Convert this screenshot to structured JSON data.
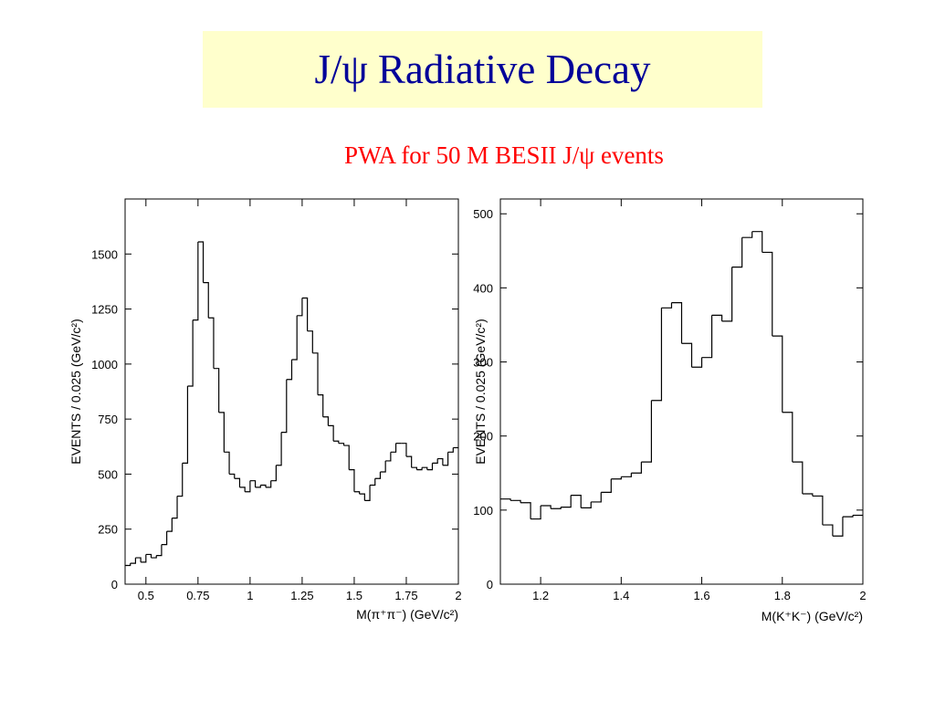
{
  "slide": {
    "title": "J/ψ Radiative Decay",
    "subtitle": "PWA for 50 M BESII J/ψ events"
  },
  "colors": {
    "title_bg": "#ffffcc",
    "title_text": "#000099",
    "subtitle_text": "#ff0000"
  },
  "chart_data": [
    {
      "type": "line",
      "style": "step-histogram",
      "ylabel": "EVENTS / 0.025 (GeV/c²)",
      "xlabel": "M(π⁺π⁻)  (GeV/c²)",
      "xlim": [
        0.4,
        2.0
      ],
      "ylim": [
        0,
        1750
      ],
      "xticks": [
        0.5,
        0.75,
        1,
        1.25,
        1.5,
        1.75,
        2
      ],
      "xtick_labels": [
        "0.5",
        "0.75",
        "1",
        "1.25",
        "1.5",
        "1.75",
        "2"
      ],
      "yticks": [
        0,
        250,
        500,
        750,
        1000,
        1250,
        1500
      ],
      "ytick_labels": [
        "0",
        "250",
        "500",
        "750",
        "1000",
        "1250",
        "1500"
      ],
      "bin_width": 0.025,
      "x": [
        0.4,
        0.425,
        0.45,
        0.475,
        0.5,
        0.525,
        0.55,
        0.575,
        0.6,
        0.625,
        0.65,
        0.675,
        0.7,
        0.725,
        0.75,
        0.775,
        0.8,
        0.825,
        0.85,
        0.875,
        0.9,
        0.925,
        0.95,
        0.975,
        1.0,
        1.025,
        1.05,
        1.075,
        1.1,
        1.125,
        1.15,
        1.175,
        1.2,
        1.225,
        1.25,
        1.275,
        1.3,
        1.325,
        1.35,
        1.375,
        1.4,
        1.425,
        1.45,
        1.475,
        1.5,
        1.525,
        1.55,
        1.575,
        1.6,
        1.625,
        1.65,
        1.675,
        1.7,
        1.725,
        1.75,
        1.775,
        1.8,
        1.825,
        1.85,
        1.875,
        1.9,
        1.925,
        1.95,
        1.975
      ],
      "values": [
        85,
        95,
        120,
        100,
        135,
        120,
        130,
        180,
        240,
        300,
        400,
        550,
        900,
        1200,
        1555,
        1370,
        1210,
        980,
        780,
        600,
        500,
        480,
        440,
        420,
        470,
        440,
        450,
        440,
        470,
        540,
        690,
        930,
        1020,
        1220,
        1300,
        1150,
        1050,
        860,
        760,
        720,
        650,
        640,
        630,
        520,
        420,
        410,
        380,
        450,
        480,
        510,
        560,
        600,
        640,
        640,
        580,
        530,
        520,
        530,
        520,
        550,
        570,
        540,
        600,
        620
      ]
    },
    {
      "type": "line",
      "style": "step-histogram",
      "ylabel": "EVENTS / 0.025 (GeV/c²)",
      "xlabel": "M(K⁺K⁻)  (GeV/c²)",
      "xlim": [
        1.1,
        2.0
      ],
      "ylim": [
        0,
        520
      ],
      "xticks": [
        1.2,
        1.4,
        1.6,
        1.8,
        2
      ],
      "xtick_labels": [
        "1.2",
        "1.4",
        "1.6",
        "1.8",
        "2"
      ],
      "yticks": [
        0,
        100,
        200,
        300,
        400,
        500
      ],
      "ytick_labels": [
        "0",
        "100",
        "200",
        "300",
        "400",
        "500"
      ],
      "bin_width": 0.025,
      "x": [
        1.1,
        1.125,
        1.15,
        1.175,
        1.2,
        1.225,
        1.25,
        1.275,
        1.3,
        1.325,
        1.35,
        1.375,
        1.4,
        1.425,
        1.45,
        1.475,
        1.5,
        1.525,
        1.55,
        1.575,
        1.6,
        1.625,
        1.65,
        1.675,
        1.7,
        1.725,
        1.75,
        1.775,
        1.8,
        1.825,
        1.85,
        1.875,
        1.9,
        1.925,
        1.95,
        1.975
      ],
      "values": [
        115,
        113,
        110,
        88,
        106,
        102,
        104,
        120,
        103,
        111,
        124,
        142,
        145,
        150,
        165,
        248,
        373,
        380,
        325,
        293,
        306,
        363,
        355,
        428,
        468,
        476,
        448,
        335,
        232,
        165,
        122,
        119,
        80,
        65,
        91,
        93
      ]
    }
  ]
}
